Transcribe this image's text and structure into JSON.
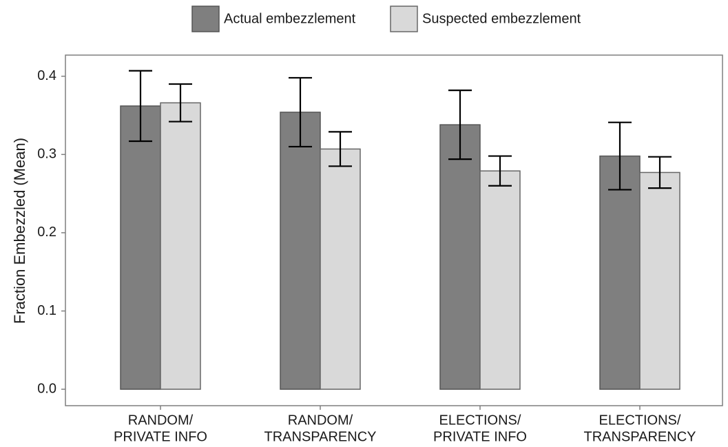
{
  "chart_data": {
    "type": "bar",
    "y_label": "Fraction Embezzled (Mean)",
    "categories": [
      [
        "RANDOM/",
        "PRIVATE INFO"
      ],
      [
        "RANDOM/",
        "TRANSPARENCY"
      ],
      [
        "ELECTIONS/",
        "PRIVATE INFO"
      ],
      [
        "ELECTIONS/",
        "TRANSPARENCY"
      ]
    ],
    "series": [
      {
        "name": "Actual embezzlement",
        "color": "#7f7f7f",
        "values": [
          0.362,
          0.354,
          0.338,
          0.298
        ],
        "errors": [
          0.045,
          0.044,
          0.044,
          0.043
        ]
      },
      {
        "name": "Suspected embezzlement",
        "color": "#d9d9d9",
        "values": [
          0.366,
          0.307,
          0.279,
          0.277
        ],
        "errors": [
          0.024,
          0.022,
          0.019,
          0.02
        ]
      }
    ],
    "ylim": [
      -0.021,
      0.427
    ],
    "yticks": [
      {
        "value": 0,
        "label": "0.0"
      },
      0.1,
      0.2,
      0.3,
      0.4
    ],
    "legend": "top"
  }
}
